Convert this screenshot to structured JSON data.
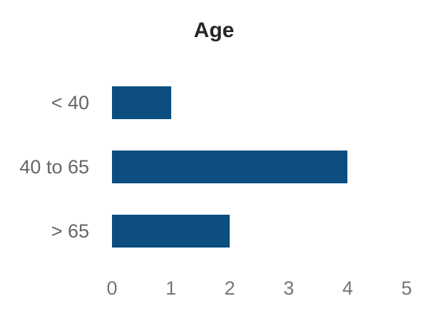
{
  "chart_data": {
    "type": "bar",
    "orientation": "horizontal",
    "title": "Age",
    "categories": [
      "< 40",
      "40 to 65",
      "> 65"
    ],
    "values": [
      1,
      4,
      2
    ],
    "xlabel": "",
    "ylabel": "",
    "xlim": [
      0,
      5
    ],
    "xticks": [
      "0",
      "1",
      "2",
      "3",
      "4",
      "5"
    ],
    "grid": false,
    "legend": false,
    "axis_lines": false
  },
  "colors": {
    "bar": "#0b4e7f",
    "title_text": "#262626",
    "category_label": "#666666",
    "tick_label": "#757575",
    "background": "#ffffff"
  }
}
